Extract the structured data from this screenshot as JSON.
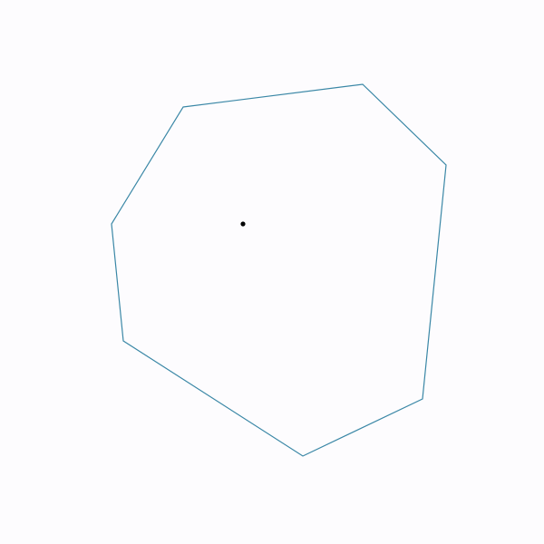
{
  "diagram": {
    "shape": "heptagon",
    "vertex_count": 7,
    "has_center_point": true
  },
  "colors": {
    "background": "#fdfcfe",
    "outline": "#3a87a6",
    "center_point": "#000000"
  }
}
